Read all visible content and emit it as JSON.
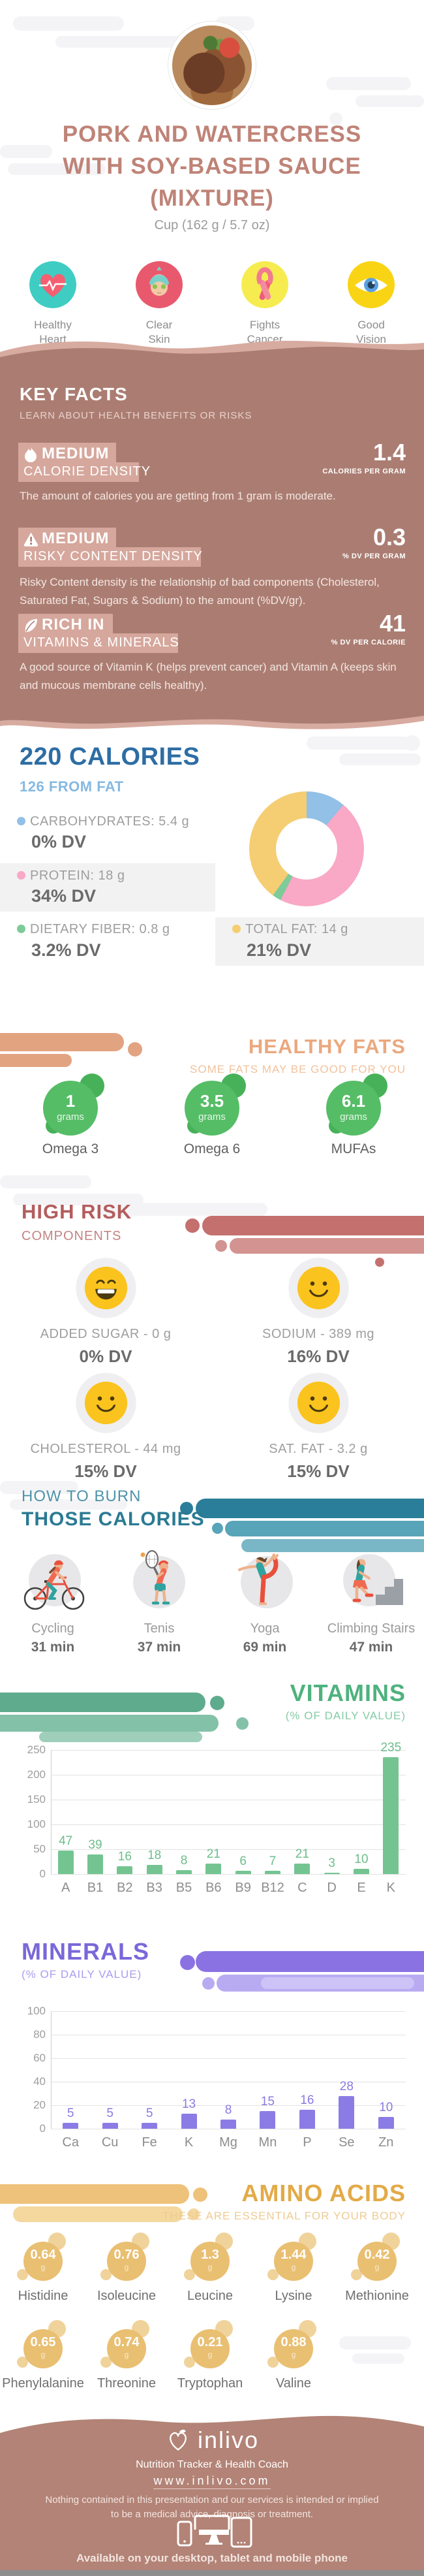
{
  "header": {
    "title": "PORK AND WATERCRESS\nWITH SOY-BASED SAUCE\n(MIXTURE)",
    "serving": "Cup (162 g / 5.7 oz)",
    "benefits": [
      {
        "icon": "heart-ecg-icon",
        "label": "Healthy\nHeart"
      },
      {
        "icon": "spa-face-icon",
        "label": "Clear\nSkin"
      },
      {
        "icon": "awareness-ribbon-icon",
        "label": "Fights\nCancer"
      },
      {
        "icon": "eye-icon",
        "label": "Good\nVision"
      }
    ]
  },
  "key_facts": {
    "title": "KEY FACTS",
    "subtitle": "LEARN ABOUT HEALTH BENEFITS OR RISKS",
    "facts": [
      {
        "icon": "flame-icon",
        "level": "MEDIUM",
        "name": "CALORIE DENSITY",
        "value": "1.4",
        "unit": "CALORIES PER GRAM",
        "description": "The amount of calories you are getting from 1 gram is moderate."
      },
      {
        "icon": "warning-icon",
        "level": "MEDIUM",
        "name": "RISKY CONTENT DENSITY",
        "value": "0.3",
        "unit": "% DV PER GRAM",
        "description": "Risky Content density is the relationship of bad components (Cholesterol, Saturated Fat, Sugars & Sodium) to the amount (%DV/gr)."
      },
      {
        "icon": "leaf-icon",
        "level": "RICH IN",
        "name": "VITAMINS & MINERALS",
        "value": "41",
        "unit": "% DV PER CALORIE",
        "description": "A good source of Vitamin K (helps prevent cancer) and Vitamin A (keeps skin and mucous membrane cells healthy)."
      }
    ]
  },
  "calories": {
    "title": "220 CALORIES",
    "subtitle": "126 FROM FAT",
    "legend": [
      {
        "label": "CARBOHYDRATES: 5.4 g",
        "dv": "0% DV",
        "color": "#92c0e6"
      },
      {
        "label": "PROTEIN: 18 g",
        "dv": "34% DV",
        "color": "#f9a8c6"
      },
      {
        "label": "DIETARY FIBER: 0.8 g",
        "dv": "3.2% DV",
        "color": "#7ecb99"
      },
      {
        "label": "TOTAL FAT: 14 g",
        "dv": "21% DV",
        "color": "#f5cd72"
      }
    ]
  },
  "healthy_fats": {
    "title": "HEALTHY FATS",
    "subtitle": "SOME FATS MAY BE GOOD FOR YOU",
    "items": [
      {
        "value": "1",
        "unit": "grams",
        "label": "Omega 3"
      },
      {
        "value": "3.5",
        "unit": "grams",
        "label": "Omega 6"
      },
      {
        "value": "6.1",
        "unit": "grams",
        "label": "MUFAs"
      }
    ]
  },
  "high_risk": {
    "title": "HIGH RISK",
    "subtitle": "COMPONENTS",
    "items": [
      {
        "mood": "grin-smiley-icon",
        "label": "ADDED SUGAR - 0 g",
        "dv": "0% DV"
      },
      {
        "mood": "smile-smiley-icon",
        "label": "SODIUM - 389 mg",
        "dv": "16% DV"
      },
      {
        "mood": "smile-smiley-icon",
        "label": "CHOLESTEROL - 44 mg",
        "dv": "15% DV"
      },
      {
        "mood": "smile-smiley-icon",
        "label": "SAT. FAT - 3.2 g",
        "dv": "15% DV"
      }
    ]
  },
  "burn": {
    "title_line1": "HOW TO BURN",
    "title_line2": "THOSE CALORIES",
    "activities": [
      {
        "icon": "cycling-icon",
        "label": "Cycling",
        "minutes": "31 min"
      },
      {
        "icon": "tennis-icon",
        "label": "Tenis",
        "minutes": "37 min"
      },
      {
        "icon": "yoga-icon",
        "label": "Yoga",
        "minutes": "69 min"
      },
      {
        "icon": "climbing-stairs-icon",
        "label": "Climbing Stairs",
        "minutes": "47 min"
      }
    ]
  },
  "vitamins": {
    "title": "VITAMINS",
    "subtitle": "(% OF DAILY VALUE)"
  },
  "minerals": {
    "title": "MINERALS",
    "subtitle": "(% OF DAILY VALUE)"
  },
  "amino_acids": {
    "title": "AMINO ACIDS",
    "subtitle": "THESE ARE ESSENTIAL FOR YOUR BODY",
    "items": [
      {
        "value": "0.64",
        "unit": "g",
        "label": "Histidine"
      },
      {
        "value": "0.76",
        "unit": "g",
        "label": "Isoleucine"
      },
      {
        "value": "1.3",
        "unit": "g",
        "label": "Leucine"
      },
      {
        "value": "1.44",
        "unit": "g",
        "label": "Lysine"
      },
      {
        "value": "0.42",
        "unit": "g",
        "label": "Methionine"
      },
      {
        "value": "0.65",
        "unit": "g",
        "label": "Phenylalanine"
      },
      {
        "value": "0.74",
        "unit": "g",
        "label": "Threonine"
      },
      {
        "value": "0.21",
        "unit": "g",
        "label": "Tryptophan"
      },
      {
        "value": "0.88",
        "unit": "g",
        "label": "Valine"
      }
    ]
  },
  "footer": {
    "logo_text": "inlivo",
    "tagline": "Nutrition Tracker & Health Coach",
    "url": "www.inlivo.com",
    "disclaimer": "Nothing contained in this presentation and our services is intended or implied\nto be a medical advice, diagnosis or treatment.",
    "availability": "Available on your desktop, tablet and mobile phone"
  },
  "palette": {
    "header_title": "#bf8377",
    "key_facts_bg": "#ab7d72",
    "fact_box": "#d6a79c",
    "calories_title": "#2d6da4",
    "calories_sub": "#85b9e2",
    "healthy_fats": "#eba87e",
    "fat_circle_green": "#55bd66",
    "high_risk": "#b45d5d",
    "smiley_yellow": "#fbc31e",
    "burn_teal": "#2b7a93",
    "vitamins_green": "#4fb27e",
    "minerals_purple": "#7a68d9",
    "amino_amber": "#e3aa47",
    "footer_bg": "#b28376"
  },
  "chart_data": [
    {
      "type": "pie",
      "title": "220 CALORIES macronutrient breakdown",
      "labels": [
        "Carbohydrates",
        "Protein",
        "Dietary Fiber",
        "Total Fat"
      ],
      "values_pct": [
        11.1,
        46.4,
        2.5,
        40.0
      ],
      "colors": [
        "#92c0e6",
        "#f9a8c6",
        "#7ecb99",
        "#f5cd72"
      ],
      "donut_hole": 0.54,
      "start": "top, clockwise",
      "legend_position": "left"
    },
    {
      "type": "bar",
      "title": "VITAMINS",
      "subtitle": "(% OF DAILY VALUE)",
      "categories": [
        "A",
        "B1",
        "B2",
        "B3",
        "B5",
        "B6",
        "B9",
        "B12",
        "C",
        "D",
        "E",
        "K"
      ],
      "values": [
        47,
        39,
        16,
        18,
        8,
        21,
        6,
        7,
        21,
        3,
        10,
        235
      ],
      "xlabel": "",
      "ylabel": "",
      "ylim": [
        0,
        250
      ],
      "yticks": [
        0,
        50,
        100,
        150,
        200,
        250
      ],
      "grid": true,
      "bar_color": "#74c492",
      "value_label_color": "#6dbd8b"
    },
    {
      "type": "bar",
      "title": "MINERALS",
      "subtitle": "(% OF DAILY VALUE)",
      "categories": [
        "Ca",
        "Cu",
        "Fe",
        "K",
        "Mg",
        "Mn",
        "P",
        "Se",
        "Zn"
      ],
      "values": [
        5,
        5,
        5,
        13,
        8,
        15,
        16,
        28,
        10
      ],
      "xlabel": "",
      "ylabel": "",
      "ylim": [
        0,
        100
      ],
      "yticks": [
        0,
        20,
        40,
        60,
        80,
        100
      ],
      "grid": true,
      "bar_color": "#8b7ce5",
      "value_label_color": "#8a7ae2"
    }
  ]
}
